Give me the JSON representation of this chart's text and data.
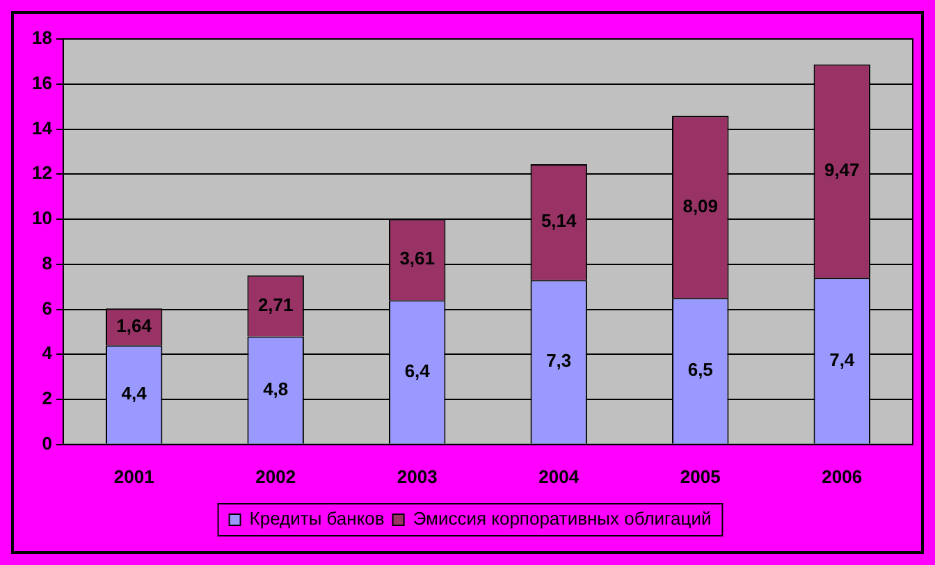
{
  "chart_data": {
    "type": "bar",
    "stacked": true,
    "categories": [
      "2001",
      "2002",
      "2003",
      "2004",
      "2005",
      "2006"
    ],
    "series": [
      {
        "name": "Кредиты банков",
        "color": "#9999ff",
        "values": [
          4.4,
          4.8,
          6.4,
          7.3,
          6.5,
          7.4
        ],
        "value_labels": [
          "4,4",
          "4,8",
          "6,4",
          "7,3",
          "6,5",
          "7,4"
        ]
      },
      {
        "name": "Эмиссия корпоративных облигаций",
        "color": "#993366",
        "values": [
          1.64,
          2.71,
          3.61,
          5.14,
          8.09,
          9.47
        ],
        "value_labels": [
          "1,64",
          "2,71",
          "3,61",
          "5,14",
          "8,09",
          "9,47"
        ]
      }
    ],
    "ylim": [
      0,
      18
    ],
    "yticks": [
      0,
      2,
      4,
      6,
      8,
      10,
      12,
      14,
      16,
      18
    ],
    "grid": "y",
    "legend": "bottom"
  }
}
